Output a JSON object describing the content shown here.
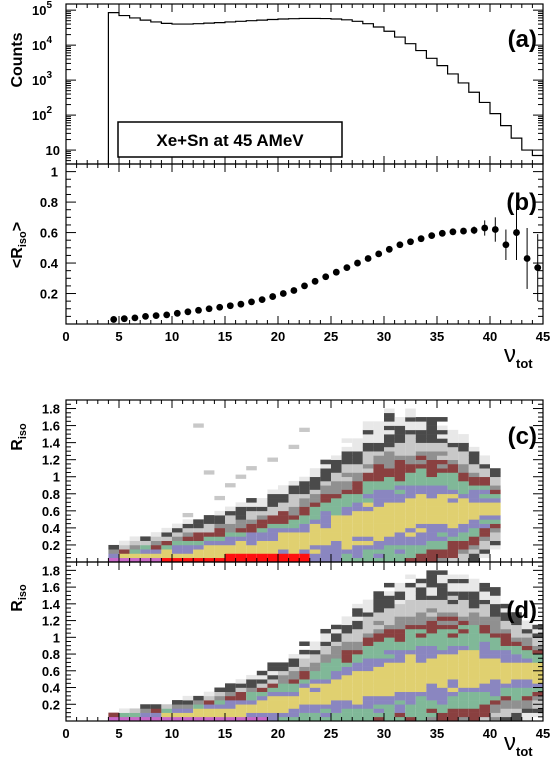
{
  "chart_data": [
    {
      "type": "histogram",
      "panel_label": "(a)",
      "ylabel": "Counts",
      "legend_text": "Xe+Sn at 45 AMeV",
      "y_log": true,
      "ylim": [
        4,
        150000
      ],
      "xlim": [
        0,
        45
      ],
      "ytick_labels": [
        {
          "value": 10,
          "base": "10",
          "exp": ""
        },
        {
          "value": 100,
          "base": "10",
          "exp": "2"
        },
        {
          "value": 1000,
          "base": "10",
          "exp": "3"
        },
        {
          "value": 10000,
          "base": "10",
          "exp": "4"
        },
        {
          "value": 100000,
          "base": "10",
          "exp": "5"
        }
      ],
      "bin_width": 1,
      "x": [
        4,
        5,
        6,
        7,
        8,
        9,
        10,
        11,
        12,
        13,
        14,
        15,
        16,
        17,
        18,
        19,
        20,
        21,
        22,
        23,
        24,
        25,
        26,
        27,
        28,
        29,
        30,
        31,
        32,
        33,
        34,
        35,
        36,
        37,
        38,
        39,
        40,
        41,
        42,
        43,
        44
      ],
      "values": [
        85000,
        70000,
        60000,
        52000,
        46000,
        42000,
        40000,
        40000,
        41000,
        42500,
        44000,
        46000,
        48000,
        50000,
        52000,
        54000,
        56000,
        57000,
        58000,
        58000,
        57500,
        56000,
        53000,
        48000,
        41000,
        33000,
        25000,
        17000,
        11000,
        7000,
        4200,
        2600,
        1500,
        830,
        450,
        230,
        110,
        50,
        22,
        10,
        7
      ]
    },
    {
      "type": "scatter",
      "panel_label": "(b)",
      "ylabel_main": "<R",
      "ylabel_sub": "iso",
      "ylabel_end": ">",
      "xlabel_main": "ν",
      "xlabel_sub": "tot",
      "xlim": [
        0,
        45
      ],
      "ylim": [
        0,
        1.05
      ],
      "xticks": [
        "0",
        "5",
        "10",
        "15",
        "20",
        "25",
        "30",
        "35",
        "40",
        "45"
      ],
      "yticks": [
        "0.2",
        "0.4",
        "0.6",
        "0.8",
        "1"
      ],
      "x": [
        4.5,
        5.5,
        6.5,
        7.5,
        8.5,
        9.5,
        10.5,
        11.5,
        12.5,
        13.5,
        14.5,
        15.5,
        16.5,
        17.5,
        18.5,
        19.5,
        20.5,
        21.5,
        22.5,
        23.5,
        24.5,
        25.5,
        26.5,
        27.5,
        28.5,
        29.5,
        30.5,
        31.5,
        32.5,
        33.5,
        34.5,
        35.5,
        36.5,
        37.5,
        38.5,
        39.5,
        40.5,
        41.5,
        42.5,
        43.5,
        44.5
      ],
      "values": [
        0.03,
        0.035,
        0.04,
        0.05,
        0.055,
        0.06,
        0.07,
        0.08,
        0.09,
        0.1,
        0.11,
        0.12,
        0.13,
        0.145,
        0.16,
        0.18,
        0.2,
        0.22,
        0.25,
        0.28,
        0.31,
        0.34,
        0.37,
        0.4,
        0.43,
        0.46,
        0.49,
        0.52,
        0.54,
        0.56,
        0.58,
        0.595,
        0.605,
        0.61,
        0.615,
        0.63,
        0.62,
        0.52,
        0.6,
        0.43,
        0.37
      ],
      "errors": [
        0.004,
        0.004,
        0.004,
        0.004,
        0.004,
        0.004,
        0.004,
        0.004,
        0.004,
        0.004,
        0.004,
        0.004,
        0.004,
        0.004,
        0.004,
        0.004,
        0.004,
        0.004,
        0.004,
        0.004,
        0.004,
        0.004,
        0.004,
        0.004,
        0.004,
        0.004,
        0.004,
        0.004,
        0.004,
        0.005,
        0.006,
        0.008,
        0.01,
        0.015,
        0.025,
        0.05,
        0.08,
        0.1,
        0.18,
        0.2,
        0.22
      ]
    },
    {
      "type": "heatmap",
      "panel_label": "(c)",
      "ylabel_main": "R",
      "ylabel_sub": "iso",
      "xlim": [
        0,
        45
      ],
      "ylim": [
        0,
        1.9
      ],
      "yticks": [
        "0.2",
        "0.4",
        "0.6",
        "0.8",
        "1",
        "1.2",
        "1.4",
        "1.6",
        "1.8"
      ],
      "x_bin_width": 1,
      "y_bin_width": 0.05,
      "centers": [
        0.03,
        0.035,
        0.04,
        0.05,
        0.055,
        0.06,
        0.07,
        0.08,
        0.09,
        0.1,
        0.11,
        0.12,
        0.13,
        0.145,
        0.16,
        0.18,
        0.2,
        0.22,
        0.25,
        0.28,
        0.31,
        0.34,
        0.37,
        0.4,
        0.43,
        0.46,
        0.49,
        0.52,
        0.54,
        0.56,
        0.58,
        0.595,
        0.605,
        0.61,
        0.615,
        0.63,
        0.62
      ],
      "spreads": [
        0.12,
        0.14,
        0.16,
        0.18,
        0.2,
        0.22,
        0.24,
        0.26,
        0.28,
        0.3,
        0.32,
        0.34,
        0.36,
        0.38,
        0.4,
        0.42,
        0.44,
        0.47,
        0.5,
        0.54,
        0.58,
        0.62,
        0.66,
        0.7,
        0.74,
        0.78,
        0.8,
        0.8,
        0.78,
        0.76,
        0.72,
        0.68,
        0.62,
        0.56,
        0.48,
        0.4,
        0.3
      ],
      "palette": [
        "#ff1010",
        "#c868c8",
        "#e0d070",
        "#8a86c0",
        "#80b898",
        "#8a4040",
        "#909090",
        "#c8c8c8",
        "#4a4a4a",
        "#e8e8e8"
      ],
      "scatter_cells": [
        [
          13,
          1.05
        ],
        [
          15,
          0.9
        ],
        [
          16,
          1.0
        ],
        [
          17,
          1.1
        ],
        [
          19,
          1.2
        ],
        [
          21,
          1.35
        ],
        [
          22,
          1.55
        ],
        [
          12,
          1.6
        ],
        [
          14,
          0.75
        ],
        [
          11,
          0.55
        ]
      ]
    },
    {
      "type": "heatmap",
      "panel_label": "(d)",
      "ylabel_main": "R",
      "ylabel_sub": "iso",
      "xlabel_main": "ν",
      "xlabel_sub": "tot",
      "xlim": [
        0,
        45
      ],
      "ylim": [
        0,
        1.9
      ],
      "xticks": [
        "0",
        "5",
        "10",
        "15",
        "20",
        "25",
        "30",
        "35",
        "40",
        "45"
      ],
      "yticks": [
        "0.2",
        "0.4",
        "0.6",
        "0.8",
        "1",
        "1.2",
        "1.4",
        "1.6",
        "1.8"
      ],
      "x_bin_width": 1,
      "y_bin_width": 0.05,
      "centers": [
        0.03,
        0.035,
        0.04,
        0.05,
        0.055,
        0.06,
        0.07,
        0.08,
        0.09,
        0.1,
        0.11,
        0.12,
        0.13,
        0.145,
        0.16,
        0.18,
        0.2,
        0.22,
        0.25,
        0.28,
        0.31,
        0.34,
        0.37,
        0.4,
        0.43,
        0.46,
        0.49,
        0.52,
        0.54,
        0.56,
        0.58,
        0.595,
        0.605,
        0.61,
        0.615,
        0.63,
        0.62,
        0.62,
        0.6,
        0.58,
        0.56
      ],
      "spreads": [
        0.06,
        0.07,
        0.08,
        0.09,
        0.1,
        0.11,
        0.12,
        0.13,
        0.15,
        0.17,
        0.19,
        0.21,
        0.23,
        0.25,
        0.28,
        0.31,
        0.34,
        0.38,
        0.42,
        0.46,
        0.5,
        0.54,
        0.58,
        0.62,
        0.66,
        0.7,
        0.72,
        0.74,
        0.75,
        0.76,
        0.76,
        0.76,
        0.74,
        0.72,
        0.7,
        0.66,
        0.6,
        0.5,
        0.45,
        0.4,
        0.35
      ],
      "palette": [
        "#ff1010",
        "#c868c8",
        "#e0d070",
        "#8a86c0",
        "#80b898",
        "#8a4040",
        "#909090",
        "#c8c8c8",
        "#4a4a4a",
        "#e8e8e8"
      ],
      "scatter_cells": []
    }
  ]
}
